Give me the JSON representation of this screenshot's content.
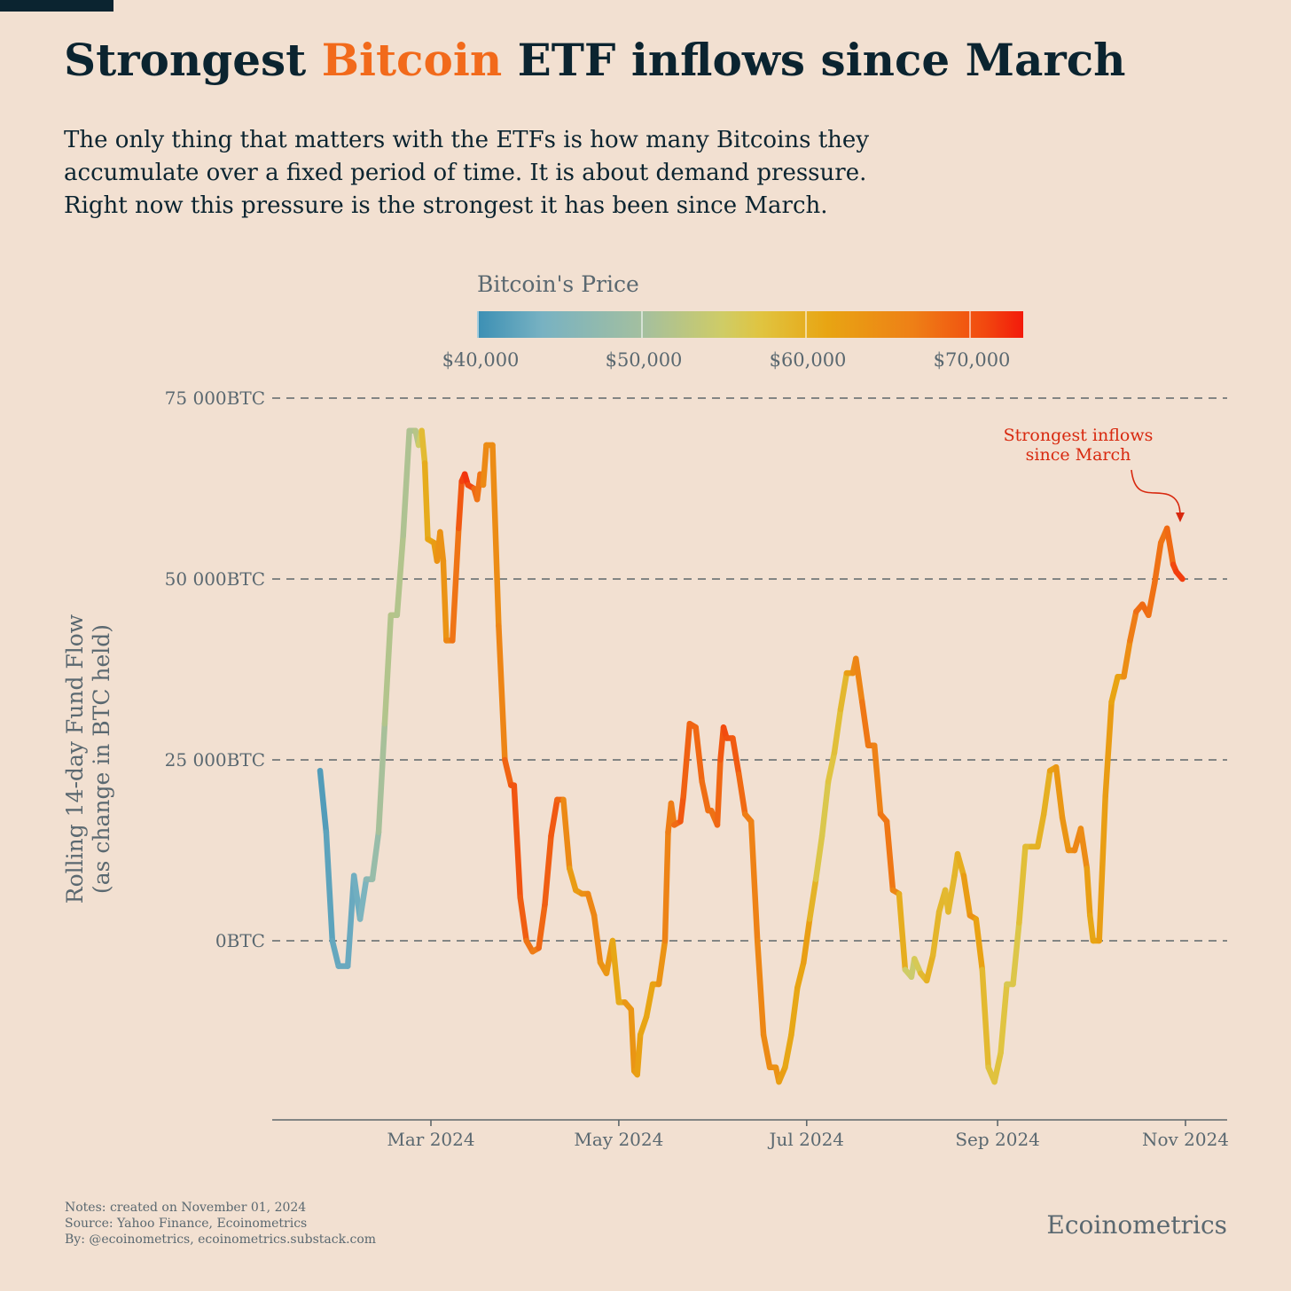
{
  "header": {
    "title_part1": "Strongest ",
    "title_highlight": "Bitcoin",
    "title_part2": " ETF inflows since March",
    "subtitle_lines": [
      "The only thing that matters with the ETFs is how many Bitcoins they",
      "accumulate over a fixed period of time. It is about demand pressure.",
      "Right now this pressure is the strongest it has been since March."
    ]
  },
  "legend": {
    "title": "Bitcoin's Price",
    "ticks": [
      "$40,000",
      "$50,000",
      "$60,000",
      "$70,000"
    ],
    "tick_values": [
      40000,
      50000,
      60000,
      70000
    ],
    "range": [
      40000,
      73300
    ]
  },
  "axes": {
    "ylabel_line1": "Rolling 14-day Fund Flow",
    "ylabel_line2": "(as change in BTC held)",
    "y_ticks": [
      "75 000BTC",
      "50 000BTC",
      "25 000BTC",
      "0BTC"
    ],
    "x_ticks": [
      "Mar 2024",
      "May 2024",
      "Jul 2024",
      "Sep 2024",
      "Nov 2024"
    ]
  },
  "annotation": {
    "line1": "Strongest inflows",
    "line2": "since March"
  },
  "footer": {
    "notes": "Notes: created on November 01, 2024",
    "source": "Source: Yahoo Finance, Ecoinometrics",
    "by": "By: @ecoinometrics, ecoinometrics.substack.com",
    "brand": "Ecoinometrics"
  },
  "colors": {
    "title_highlight": "#f26a1b",
    "annotation": "#d8290f",
    "text_dark": "#0b2430",
    "text_muted": "#5a6870",
    "background": "#f2e0d1"
  },
  "chart_data": {
    "type": "line",
    "title": "Strongest Bitcoin ETF inflows since March",
    "ylabel": "Rolling 14-day Fund Flow (as change in BTC held)",
    "ylim": [
      -25000,
      75000
    ],
    "y_ticks": [
      0,
      25000,
      50000,
      75000
    ],
    "x_ticks": [
      "2024-03-01",
      "2024-05-01",
      "2024-07-01",
      "2024-09-01",
      "2024-11-01"
    ],
    "grid": "horizontal dashed",
    "color_by": "Bitcoin price (USD)",
    "series": [
      {
        "points": [
          [
            "2024-01-25",
            23500,
            41000
          ],
          [
            "2024-01-27",
            15000,
            42000
          ],
          [
            "2024-01-29",
            0,
            42500
          ],
          [
            "2024-01-31",
            -3500,
            43000
          ],
          [
            "2024-02-03",
            -3500,
            43000
          ],
          [
            "2024-02-05",
            9000,
            43000
          ],
          [
            "2024-02-07",
            3000,
            44000
          ],
          [
            "2024-02-09",
            8500,
            45500
          ],
          [
            "2024-02-11",
            8500,
            47500
          ],
          [
            "2024-02-13",
            15000,
            49500
          ],
          [
            "2024-02-15",
            30000,
            51500
          ],
          [
            "2024-02-17",
            45000,
            52000
          ],
          [
            "2024-02-19",
            45000,
            52000
          ],
          [
            "2024-02-21",
            56000,
            51500
          ],
          [
            "2024-02-23",
            70500,
            51000
          ],
          [
            "2024-02-25",
            70500,
            51500
          ],
          [
            "2024-02-26",
            68500,
            53000
          ],
          [
            "2024-02-27",
            70500,
            57000
          ],
          [
            "2024-02-28",
            66000,
            60000
          ],
          [
            "2024-02-29",
            55500,
            61000
          ],
          [
            "2024-03-02",
            55000,
            62000
          ],
          [
            "2024-03-03",
            52500,
            63000
          ],
          [
            "2024-03-04",
            56500,
            65000
          ],
          [
            "2024-03-05",
            52500,
            63000
          ],
          [
            "2024-03-06",
            41500,
            64500
          ],
          [
            "2024-03-08",
            41500,
            66500
          ],
          [
            "2024-03-10",
            57000,
            68500
          ],
          [
            "2024-03-11",
            63500,
            71000
          ],
          [
            "2024-03-12",
            64500,
            71500
          ],
          [
            "2024-03-13",
            63000,
            72500
          ],
          [
            "2024-03-15",
            62500,
            69500
          ],
          [
            "2024-03-16",
            61000,
            67000
          ],
          [
            "2024-03-17",
            64500,
            68000
          ],
          [
            "2024-03-18",
            63000,
            67000
          ],
          [
            "2024-03-19",
            68500,
            63500
          ],
          [
            "2024-03-21",
            68500,
            66000
          ],
          [
            "2024-03-23",
            43500,
            63500
          ],
          [
            "2024-03-25",
            25000,
            68000
          ],
          [
            "2024-03-27",
            21500,
            69500
          ],
          [
            "2024-03-28",
            21500,
            70500
          ],
          [
            "2024-03-30",
            6000,
            69500
          ],
          [
            "2024-04-01",
            0,
            69000
          ],
          [
            "2024-04-03",
            -1500,
            66000
          ],
          [
            "2024-04-05",
            -1000,
            67500
          ],
          [
            "2024-04-07",
            5000,
            69500
          ],
          [
            "2024-04-09",
            14500,
            69000
          ],
          [
            "2024-04-11",
            19500,
            70500
          ],
          [
            "2024-04-13",
            19500,
            67000
          ],
          [
            "2024-04-15",
            10000,
            63500
          ],
          [
            "2024-04-17",
            7000,
            61500
          ],
          [
            "2024-04-19",
            6500,
            64000
          ],
          [
            "2024-04-21",
            6500,
            64500
          ],
          [
            "2024-04-23",
            3500,
            66500
          ],
          [
            "2024-04-25",
            -3000,
            64500
          ],
          [
            "2024-04-27",
            -4500,
            63000
          ],
          [
            "2024-04-29",
            0,
            63500
          ],
          [
            "2024-05-01",
            -8500,
            58500
          ],
          [
            "2024-05-03",
            -8500,
            62500
          ],
          [
            "2024-05-05",
            -9500,
            64000
          ],
          [
            "2024-05-06",
            -18000,
            63000
          ],
          [
            "2024-05-07",
            -18500,
            62500
          ],
          [
            "2024-05-08",
            -13000,
            61500
          ],
          [
            "2024-05-10",
            -10500,
            61000
          ],
          [
            "2024-05-12",
            -6000,
            61500
          ],
          [
            "2024-05-14",
            -6000,
            62000
          ],
          [
            "2024-05-16",
            0,
            65500
          ],
          [
            "2024-05-17",
            15000,
            66500
          ],
          [
            "2024-05-18",
            19000,
            67000
          ],
          [
            "2024-05-19",
            16000,
            66500
          ],
          [
            "2024-05-21",
            16500,
            70000
          ],
          [
            "2024-05-22",
            20000,
            69500
          ],
          [
            "2024-05-24",
            30000,
            68500
          ],
          [
            "2024-05-26",
            29500,
            69000
          ],
          [
            "2024-05-28",
            22000,
            68000
          ],
          [
            "2024-05-30",
            18000,
            68000
          ],
          [
            "2024-05-31",
            18000,
            67500
          ],
          [
            "2024-06-02",
            16000,
            68000
          ],
          [
            "2024-06-03",
            25000,
            69000
          ],
          [
            "2024-06-04",
            29500,
            70500
          ],
          [
            "2024-06-05",
            28000,
            71000
          ],
          [
            "2024-06-07",
            28000,
            69500
          ],
          [
            "2024-06-09",
            23000,
            69500
          ],
          [
            "2024-06-11",
            17500,
            67000
          ],
          [
            "2024-06-13",
            16500,
            66500
          ],
          [
            "2024-06-15",
            0,
            66000
          ],
          [
            "2024-06-17",
            -13000,
            65000
          ],
          [
            "2024-06-19",
            -17500,
            65000
          ],
          [
            "2024-06-21",
            -17500,
            64000
          ],
          [
            "2024-06-22",
            -19500,
            64000
          ],
          [
            "2024-06-24",
            -17500,
            60500
          ],
          [
            "2024-06-26",
            -13000,
            61500
          ],
          [
            "2024-06-28",
            -6500,
            60500
          ],
          [
            "2024-06-30",
            -3000,
            62500
          ],
          [
            "2024-07-02",
            3000,
            62000
          ],
          [
            "2024-07-04",
            8500,
            57000
          ],
          [
            "2024-07-06",
            14500,
            56500
          ],
          [
            "2024-07-08",
            22000,
            56500
          ],
          [
            "2024-07-10",
            26000,
            58000
          ],
          [
            "2024-07-12",
            32000,
            58000
          ],
          [
            "2024-07-14",
            37000,
            60000
          ],
          [
            "2024-07-16",
            37000,
            64500
          ],
          [
            "2024-07-17",
            39000,
            65000
          ],
          [
            "2024-07-19",
            33000,
            66500
          ],
          [
            "2024-07-21",
            27000,
            68000
          ],
          [
            "2024-07-23",
            27000,
            66000
          ],
          [
            "2024-07-25",
            17500,
            66500
          ],
          [
            "2024-07-27",
            16500,
            68000
          ],
          [
            "2024-07-29",
            7000,
            66500
          ],
          [
            "2024-07-31",
            6500,
            64500
          ],
          [
            "2024-08-02",
            -4000,
            56000
          ],
          [
            "2024-08-04",
            -5000,
            54000
          ],
          [
            "2024-08-05",
            -2500,
            55000
          ],
          [
            "2024-08-07",
            -4500,
            57000
          ],
          [
            "2024-08-09",
            -5500,
            60500
          ],
          [
            "2024-08-11",
            -2000,
            59000
          ],
          [
            "2024-08-13",
            4000,
            59500
          ],
          [
            "2024-08-15",
            7000,
            58500
          ],
          [
            "2024-08-16",
            4000,
            59000
          ],
          [
            "2024-08-18",
            9000,
            59000
          ],
          [
            "2024-08-19",
            12000,
            59500
          ],
          [
            "2024-08-21",
            9000,
            61000
          ],
          [
            "2024-08-23",
            3500,
            64000
          ],
          [
            "2024-08-25",
            3000,
            64000
          ],
          [
            "2024-08-27",
            -4000,
            59500
          ],
          [
            "2024-08-29",
            -17500,
            58000
          ],
          [
            "2024-08-31",
            -19500,
            57000
          ],
          [
            "2024-09-02",
            -15500,
            58000
          ],
          [
            "2024-09-04",
            -6000,
            56500
          ],
          [
            "2024-09-06",
            -6000,
            56000
          ],
          [
            "2024-09-08",
            2500,
            57500
          ],
          [
            "2024-09-10",
            13000,
            58500
          ],
          [
            "2024-09-12",
            13000,
            58500
          ],
          [
            "2024-09-14",
            13000,
            60500
          ],
          [
            "2024-09-16",
            17500,
            59000
          ],
          [
            "2024-09-18",
            23500,
            61000
          ],
          [
            "2024-09-20",
            24000,
            63000
          ],
          [
            "2024-09-22",
            17000,
            63500
          ],
          [
            "2024-09-24",
            12500,
            63500
          ],
          [
            "2024-09-26",
            12500,
            65000
          ],
          [
            "2024-09-28",
            15500,
            66000
          ],
          [
            "2024-09-30",
            10000,
            63500
          ],
          [
            "2024-10-01",
            3500,
            61000
          ],
          [
            "2024-10-02",
            0,
            61000
          ],
          [
            "2024-10-04",
            0,
            62000
          ],
          [
            "2024-10-06",
            20000,
            62500
          ],
          [
            "2024-10-08",
            33000,
            62500
          ],
          [
            "2024-10-10",
            36500,
            60500
          ],
          [
            "2024-10-12",
            36500,
            63000
          ],
          [
            "2024-10-14",
            41500,
            66000
          ],
          [
            "2024-10-16",
            45500,
            67500
          ],
          [
            "2024-10-18",
            46500,
            68500
          ],
          [
            "2024-10-20",
            45000,
            68000
          ],
          [
            "2024-10-22",
            49500,
            67500
          ],
          [
            "2024-10-24",
            55000,
            68000
          ],
          [
            "2024-10-26",
            57000,
            67000
          ],
          [
            "2024-10-28",
            52000,
            69500
          ],
          [
            "2024-10-29",
            51000,
            72500
          ],
          [
            "2024-10-31",
            50000,
            70500
          ]
        ]
      }
    ]
  }
}
